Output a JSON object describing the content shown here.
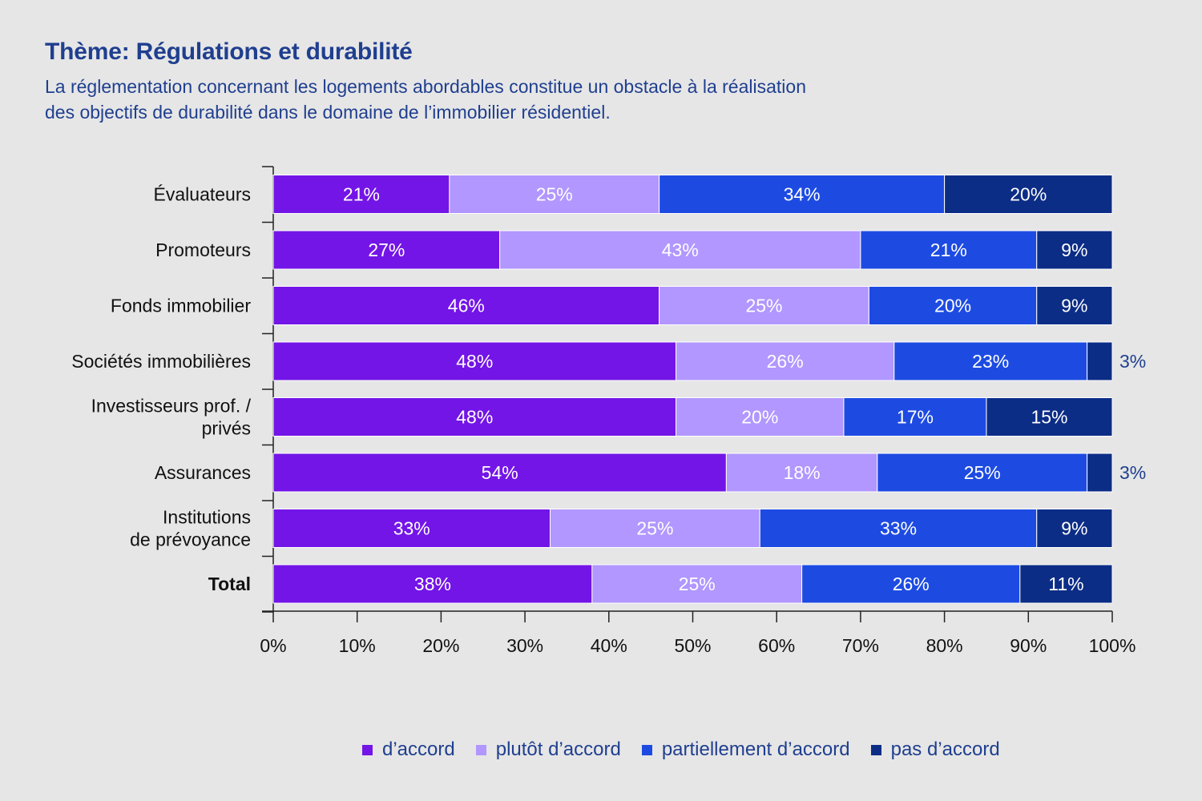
{
  "header": {
    "title": "Thème: Régulations et durabilité",
    "subtitle_lines": [
      "La réglementation concernant les logements abordables constitue un obstacle à la réalisation",
      "des objectifs de durabilité dans le domaine de l’immobilier résidentiel."
    ]
  },
  "colors": {
    "background": "#e6e6e6",
    "text_blue": "#1f3f8f",
    "series": [
      "#7315e6",
      "#b197ff",
      "#1d4be2",
      "#0c2d86"
    ]
  },
  "chart_data": {
    "type": "bar",
    "orientation": "horizontal",
    "stacked": true,
    "title": "Thème: Régulations et durabilité",
    "xlim": [
      0,
      100
    ],
    "x_ticks": [
      "0%",
      "10%",
      "20%",
      "30%",
      "40%",
      "50%",
      "60%",
      "70%",
      "80%",
      "90%",
      "100%"
    ],
    "categories": [
      {
        "lines": [
          "Évaluateurs"
        ],
        "bold": false
      },
      {
        "lines": [
          "Promoteurs"
        ],
        "bold": false
      },
      {
        "lines": [
          "Fonds immobilier"
        ],
        "bold": false
      },
      {
        "lines": [
          "Sociétés immobilières"
        ],
        "bold": false
      },
      {
        "lines": [
          "Investisseurs prof. /",
          "privés"
        ],
        "bold": false
      },
      {
        "lines": [
          "Assurances"
        ],
        "bold": false
      },
      {
        "lines": [
          "Institutions",
          "de prévoyance"
        ],
        "bold": false
      },
      {
        "lines": [
          "Total"
        ],
        "bold": true
      }
    ],
    "series": [
      {
        "name": "d’accord",
        "values": [
          21,
          27,
          46,
          48,
          48,
          54,
          33,
          38
        ],
        "labels": [
          "21%",
          "27%",
          "46%",
          "48%",
          "48%",
          "54%",
          "33%",
          "38%"
        ]
      },
      {
        "name": "plutôt d’accord",
        "values": [
          25,
          43,
          25,
          26,
          20,
          18,
          25,
          25
        ],
        "labels": [
          "25%",
          "43%",
          "25%",
          "26%",
          "20%",
          "18%",
          "25%",
          "25%"
        ]
      },
      {
        "name": "partiellement d’accord",
        "values": [
          34,
          21,
          20,
          23,
          17,
          25,
          33,
          26
        ],
        "labels": [
          "34%",
          "21%",
          "20%",
          "23%",
          "17%",
          "25%",
          "33%",
          "26%"
        ]
      },
      {
        "name": "pas d’accord",
        "values": [
          20,
          9,
          9,
          3,
          15,
          3,
          9,
          11
        ],
        "labels": [
          "20%",
          "9%",
          "9%",
          "3%",
          "15%",
          "3%",
          "9%",
          "11%"
        ]
      }
    ],
    "legend_position": "bottom",
    "grid": false
  }
}
